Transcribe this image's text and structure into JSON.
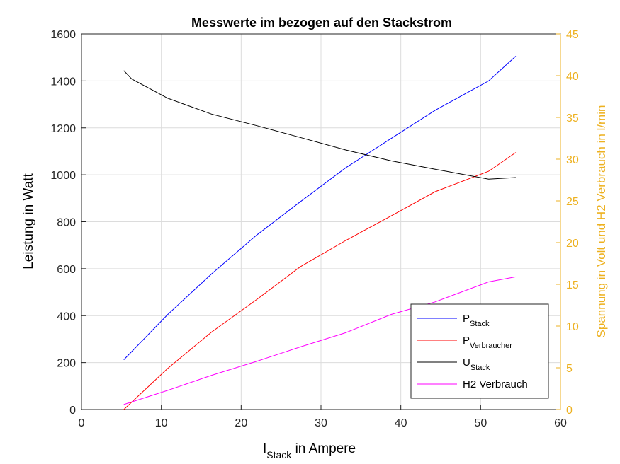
{
  "chart_data": {
    "type": "line",
    "title": "Messwerte im bezogen auf den Stackstrom",
    "xlabel": {
      "main": "I",
      "sub": "Stack",
      "rest": " in Ampere"
    },
    "ylabel_left": "Leistung in Watt",
    "ylabel_right": "Spannung in Volt und H2 Verbrauch in l/min",
    "xlim": [
      0,
      60
    ],
    "ylim_left": [
      0,
      1600
    ],
    "ylim_right": [
      0,
      45
    ],
    "xticks": [
      0,
      10,
      20,
      30,
      40,
      50,
      60
    ],
    "yticks_left": [
      0,
      200,
      400,
      600,
      800,
      1000,
      1200,
      1400,
      1600
    ],
    "yticks_right": [
      0,
      5,
      10,
      15,
      20,
      25,
      30,
      35,
      40,
      45
    ],
    "grid": true,
    "legend_position": "bottom-right",
    "colors": {
      "right_axis": "#EDB120"
    },
    "series": [
      {
        "name": "P",
        "name_sub": "Stack",
        "axis": "left",
        "color": "#0000FF",
        "x": [
          5.3,
          10.8,
          16.3,
          22.0,
          27.4,
          33.1,
          38.8,
          44.3,
          51.0,
          54.4
        ],
        "y": [
          212,
          405,
          578,
          745,
          885,
          1030,
          1155,
          1275,
          1400,
          1505
        ]
      },
      {
        "name": "P",
        "name_sub": "Verbraucher",
        "axis": "left",
        "color": "#FF0000",
        "x": [
          5.3,
          10.8,
          16.3,
          22.0,
          27.4,
          33.1,
          38.8,
          44.3,
          51.0,
          54.4
        ],
        "y": [
          0,
          175,
          330,
          470,
          608,
          720,
          825,
          928,
          1015,
          1095
        ]
      },
      {
        "name": "U",
        "name_sub": "Stack",
        "axis": "right",
        "color": "#000000",
        "x": [
          5.3,
          6.3,
          10.8,
          16.3,
          22.0,
          27.4,
          33.1,
          38.8,
          44.3,
          51.0,
          54.4
        ],
        "y": [
          40.6,
          39.6,
          37.3,
          35.4,
          34.0,
          32.6,
          31.1,
          29.8,
          28.8,
          27.6,
          27.8
        ]
      },
      {
        "name": "H2 Verbrauch",
        "name_sub": "",
        "axis": "right",
        "color": "#FF00FF",
        "x": [
          5.3,
          10.8,
          16.3,
          22.0,
          27.4,
          33.1,
          38.8,
          44.3,
          51.0,
          54.4
        ],
        "y": [
          0.6,
          2.3,
          4.1,
          5.8,
          7.5,
          9.2,
          11.4,
          12.9,
          15.3,
          15.9
        ]
      }
    ]
  }
}
